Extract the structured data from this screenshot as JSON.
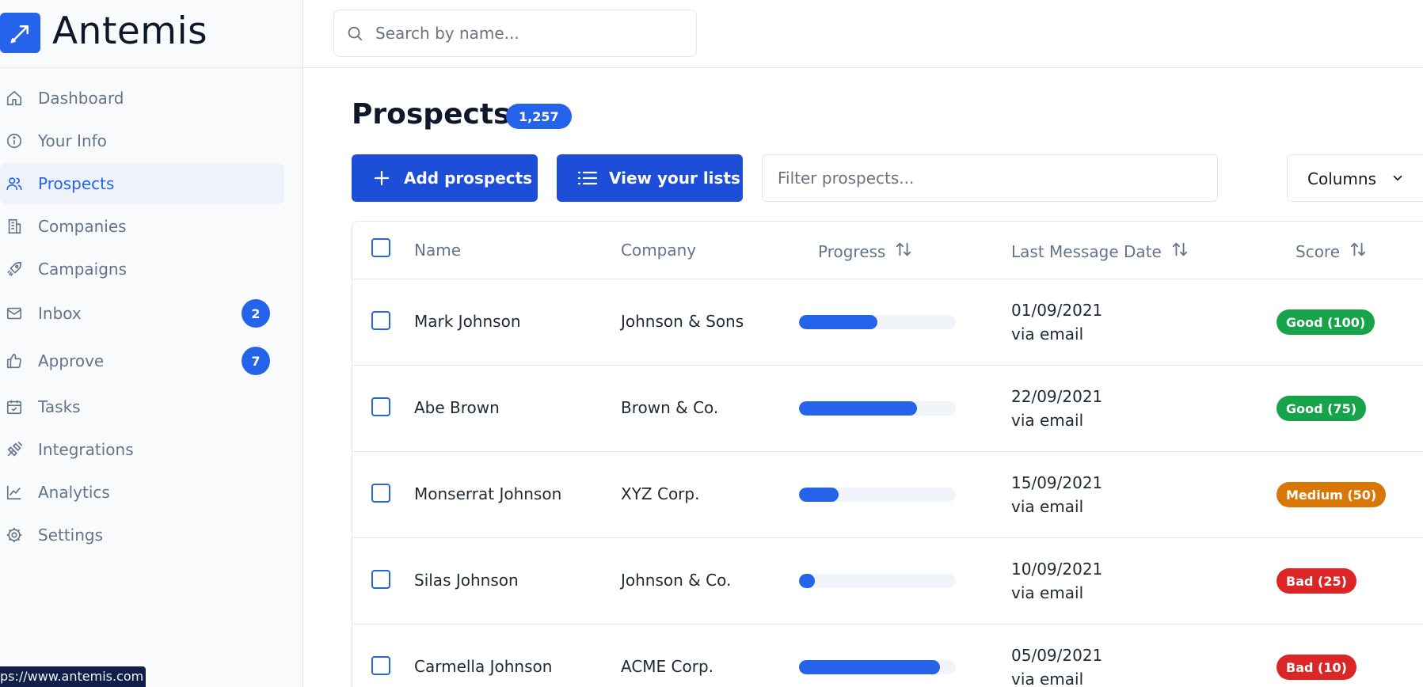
{
  "brand": {
    "name": "Antemis"
  },
  "search": {
    "placeholder": "Search by name..."
  },
  "sidebar": {
    "items": [
      {
        "label": "Dashboard",
        "icon": "home-icon"
      },
      {
        "label": "Your Info",
        "icon": "info-icon"
      },
      {
        "label": "Prospects",
        "icon": "users-icon",
        "active": true
      },
      {
        "label": "Companies",
        "icon": "building-icon"
      },
      {
        "label": "Campaigns",
        "icon": "rocket-icon"
      },
      {
        "label": "Inbox",
        "icon": "mail-icon",
        "badge": "2"
      },
      {
        "label": "Approve",
        "icon": "thumbs-up-icon",
        "badge": "7"
      },
      {
        "label": "Tasks",
        "icon": "calendar-check-icon"
      },
      {
        "label": "Integrations",
        "icon": "plug-icon"
      },
      {
        "label": "Analytics",
        "icon": "line-chart-icon"
      },
      {
        "label": "Settings",
        "icon": "gear-icon"
      }
    ]
  },
  "status_bar": {
    "url": "ps://www.antemis.com"
  },
  "page": {
    "title": "Prospects",
    "count": "1,257"
  },
  "toolbar": {
    "add_label": "Add prospects",
    "view_label": "View your lists",
    "filter_placeholder": "Filter prospects...",
    "columns_label": "Columns"
  },
  "table": {
    "headers": {
      "name": "Name",
      "company": "Company",
      "progress": "Progress",
      "last_message": "Last Message Date",
      "score": "Score"
    },
    "rows": [
      {
        "name": "Mark Johnson",
        "company": "Johnson & Sons",
        "progress": 0.5,
        "date": "01/09/2021",
        "via": "via email",
        "score": "Good (100)",
        "score_color": "#16a34a"
      },
      {
        "name": "Abe Brown",
        "company": "Brown & Co.",
        "progress": 0.75,
        "date": "22/09/2021",
        "via": "via email",
        "score": "Good (75)",
        "score_color": "#16a34a"
      },
      {
        "name": "Monserrat Johnson",
        "company": "XYZ Corp.",
        "progress": 0.25,
        "date": "15/09/2021",
        "via": "via email",
        "score": "Medium (50)",
        "score_color": "#d97706"
      },
      {
        "name": "Silas Johnson",
        "company": "Johnson & Co.",
        "progress": 0.1,
        "date": "10/09/2021",
        "via": "via email",
        "score": "Bad (25)",
        "score_color": "#dc2626"
      },
      {
        "name": "Carmella Johnson",
        "company": "ACME Corp.",
        "progress": 0.9,
        "date": "05/09/2021",
        "via": "via email",
        "score": "Bad (10)",
        "score_color": "#dc2626"
      }
    ]
  },
  "colors": {
    "accent": "#2563eb",
    "button": "#1d4ed8",
    "good": "#16a34a",
    "medium": "#d97706",
    "bad": "#dc2626"
  }
}
